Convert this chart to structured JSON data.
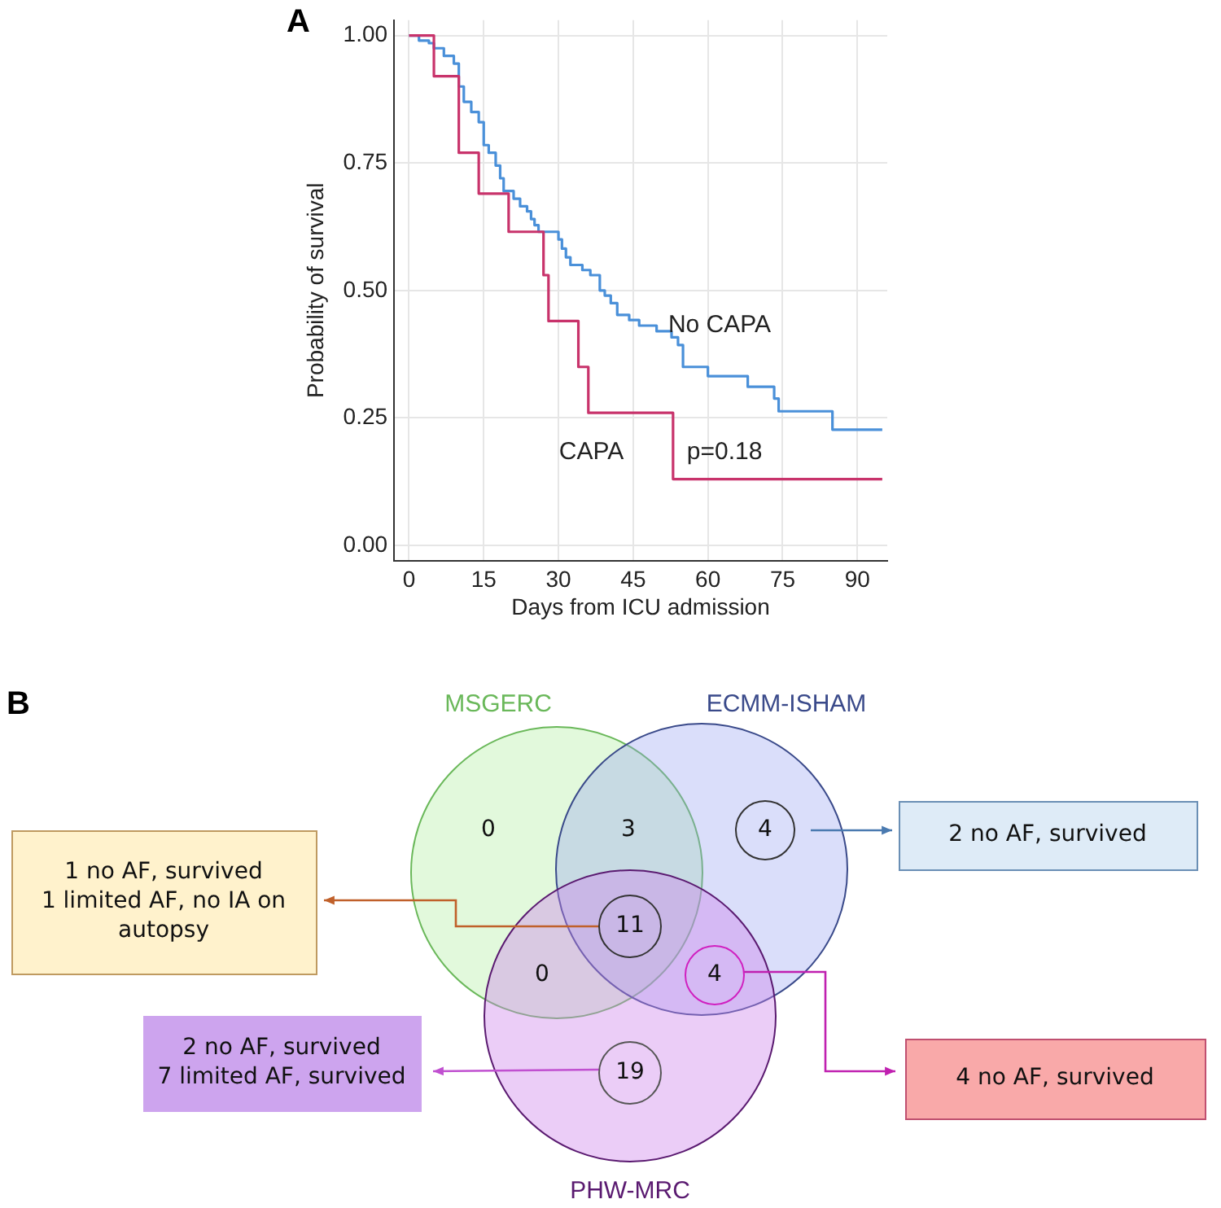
{
  "chart_data": [
    {
      "type": "step",
      "title": "A",
      "xlabel": "Days from ICU admission",
      "ylabel": "Probability of survival",
      "xlim": [
        -3,
        96
      ],
      "xticks": [
        0,
        15,
        30,
        45,
        60,
        75,
        90
      ],
      "ylim": [
        -0.03,
        1.03
      ],
      "yticks": [
        {
          "value": 0,
          "label": "0.00"
        },
        {
          "value": 0.25,
          "label": "0.25"
        },
        {
          "value": 0.5,
          "label": "0.50"
        },
        {
          "value": 0.75,
          "label": "0.75"
        },
        {
          "value": 1,
          "label": "1.00"
        }
      ],
      "grid": true,
      "series": [
        {
          "name": "CAPA",
          "color": "#c8336b",
          "x": [
            0,
            5,
            10,
            14,
            20,
            27,
            28,
            34,
            36,
            53,
            95
          ],
          "values": [
            1,
            0.92,
            0.77,
            0.69,
            0.615,
            0.53,
            0.44,
            0.35,
            0.26,
            0.13,
            0.13
          ]
        },
        {
          "name": "No CAPA",
          "color": "#4a90d9",
          "x": [
            0,
            2,
            4,
            5,
            7,
            9,
            10,
            11,
            12.5,
            14,
            15,
            16,
            17.4,
            18.3,
            19,
            21,
            22.3,
            23.7,
            24.5,
            25.2,
            26,
            30,
            30.7,
            31.5,
            32.4,
            34.8,
            36.4,
            38.3,
            39.3,
            40.5,
            41.8,
            44.2,
            46.2,
            49.7,
            52.7,
            54,
            55,
            60,
            68,
            73.3,
            74.2,
            85,
            95
          ],
          "values": [
            1,
            0.99,
            0.985,
            0.975,
            0.96,
            0.945,
            0.9,
            0.87,
            0.85,
            0.83,
            0.785,
            0.77,
            0.745,
            0.72,
            0.695,
            0.68,
            0.665,
            0.655,
            0.64,
            0.628,
            0.615,
            0.6,
            0.582,
            0.565,
            0.55,
            0.54,
            0.53,
            0.5,
            0.49,
            0.475,
            0.452,
            0.442,
            0.431,
            0.42,
            0.408,
            0.393,
            0.35,
            0.332,
            0.311,
            0.288,
            0.263,
            0.227,
            0.227
          ]
        }
      ],
      "annotations": [
        "p=0.18"
      ]
    },
    {
      "type": "other",
      "title": "B",
      "categories": [
        null,
        null,
        null,
        null,
        null,
        null,
        null
      ],
      "values": [
        0,
        3,
        4,
        11,
        0,
        4,
        19
      ],
      "data_labels": true,
      "annotations": [
        "MSGERC",
        "ECMM-ISHAM",
        "PHW-MRC",
        "1 no AF, survived\n1 limited AF, no IA on\nautopsy",
        "2 no AF, survived",
        "2 no AF, survived\n7 limited AF, survived",
        "4 no AF, survived"
      ]
    }
  ]
}
